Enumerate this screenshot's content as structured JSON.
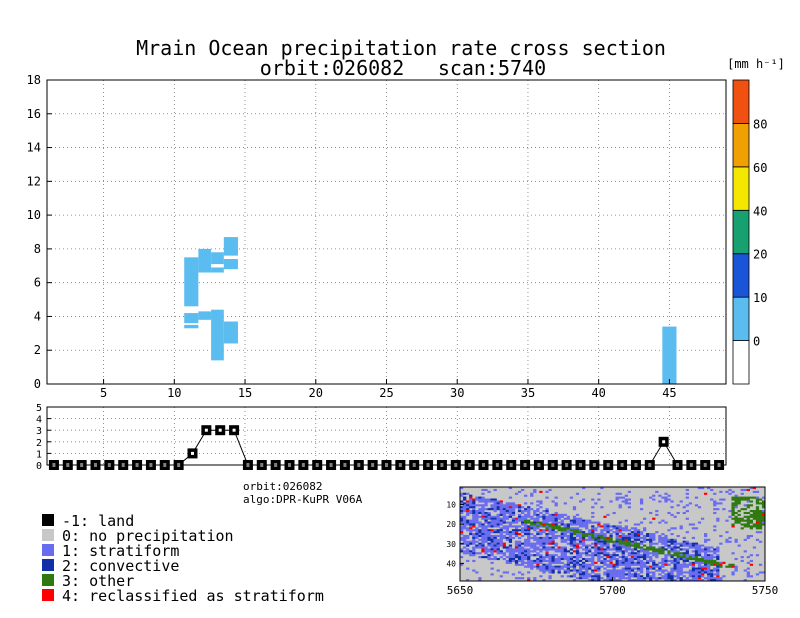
{
  "chart_data": [
    {
      "type": "heatmap",
      "title": "Mrain Ocean precipitation rate cross section",
      "subtitle_orbit": "orbit:026082",
      "subtitle_scan": "scan:5740",
      "xlim": [
        1,
        49
      ],
      "ylim": [
        0,
        18
      ],
      "xticks": [
        5,
        10,
        15,
        20,
        25,
        30,
        35,
        40,
        45
      ],
      "yticks": [
        0,
        2,
        4,
        6,
        8,
        10,
        12,
        14,
        16,
        18
      ],
      "grid": true,
      "fill_color": "#5bbcf0",
      "cells": [
        {
          "x0": 10.7,
          "x1": 11.7,
          "y0": 4.6,
          "y1": 7.5
        },
        {
          "x0": 11.7,
          "x1": 12.6,
          "y0": 6.6,
          "y1": 8.0
        },
        {
          "x0": 12.6,
          "x1": 13.5,
          "y0": 7.1,
          "y1": 7.8
        },
        {
          "x0": 12.6,
          "x1": 13.5,
          "y0": 6.6,
          "y1": 6.9
        },
        {
          "x0": 13.5,
          "x1": 14.5,
          "y0": 7.6,
          "y1": 8.7
        },
        {
          "x0": 13.5,
          "x1": 14.5,
          "y0": 6.8,
          "y1": 7.4
        },
        {
          "x0": 10.7,
          "x1": 11.7,
          "y0": 3.6,
          "y1": 4.2
        },
        {
          "x0": 10.7,
          "x1": 11.7,
          "y0": 3.3,
          "y1": 3.5
        },
        {
          "x0": 11.7,
          "x1": 12.6,
          "y0": 3.8,
          "y1": 4.3
        },
        {
          "x0": 12.6,
          "x1": 13.5,
          "y0": 1.4,
          "y1": 4.4
        },
        {
          "x0": 13.5,
          "x1": 14.5,
          "y0": 2.4,
          "y1": 3.7
        },
        {
          "x0": 44.5,
          "x1": 45.5,
          "y0": 0.0,
          "y1": 3.4
        }
      ]
    },
    {
      "type": "line",
      "title": "",
      "ylim": [
        0,
        5
      ],
      "yticks": [
        0,
        1,
        2,
        3,
        4,
        5
      ],
      "xlim": [
        1,
        49
      ],
      "x": [
        1,
        2,
        3,
        4,
        5,
        6,
        7,
        8,
        9,
        10,
        11,
        12,
        13,
        14,
        15,
        16,
        17,
        18,
        19,
        20,
        21,
        22,
        23,
        24,
        25,
        26,
        27,
        28,
        29,
        30,
        31,
        32,
        33,
        34,
        35,
        36,
        37,
        38,
        39,
        40,
        41,
        42,
        43,
        44,
        45,
        46,
        47,
        48,
        49
      ],
      "values": [
        0,
        0,
        0,
        0,
        0,
        0,
        0,
        0,
        0,
        0,
        1,
        3,
        3,
        3,
        0,
        0,
        0,
        0,
        0,
        0,
        0,
        0,
        0,
        0,
        0,
        0,
        0,
        0,
        0,
        0,
        0,
        0,
        0,
        0,
        0,
        0,
        0,
        0,
        0,
        0,
        0,
        0,
        0,
        0,
        2,
        0,
        0,
        0,
        0
      ]
    },
    {
      "type": "bar",
      "title": "colorbar",
      "unit": "[mm h⁻¹]",
      "boundaries": [
        0,
        10,
        20,
        40,
        60,
        80
      ],
      "tick_labels": [
        "0",
        "10",
        "20",
        "40",
        "60",
        "80"
      ],
      "colors": [
        "#ffffff",
        "#5bbcf0",
        "#1a55d8",
        "#17a070",
        "#f5e800",
        "#f0a000",
        "#f05010"
      ]
    },
    {
      "type": "heatmap",
      "title": "precip type map",
      "xlim": [
        5650,
        5750
      ],
      "ylim": [
        49,
        1
      ],
      "xticks": [
        5650,
        5700,
        5750
      ],
      "yticks": [
        10,
        20,
        30,
        40
      ]
    }
  ],
  "legend": {
    "items": [
      {
        "label": "-1: land",
        "color": "#000000"
      },
      {
        "label": "0: no precipitation",
        "color": "#c8c8c8"
      },
      {
        "label": "1: stratiform",
        "color": "#6a6cf0"
      },
      {
        "label": "2: convective",
        "color": "#1030a8"
      },
      {
        "label": "3: other",
        "color": "#2f7a10"
      },
      {
        "label": "4: reclassified as stratiform",
        "color": "#ff0000"
      }
    ]
  },
  "info": {
    "orbit": "orbit:026082",
    "algo": "algo:DPR-KuPR V06A"
  }
}
